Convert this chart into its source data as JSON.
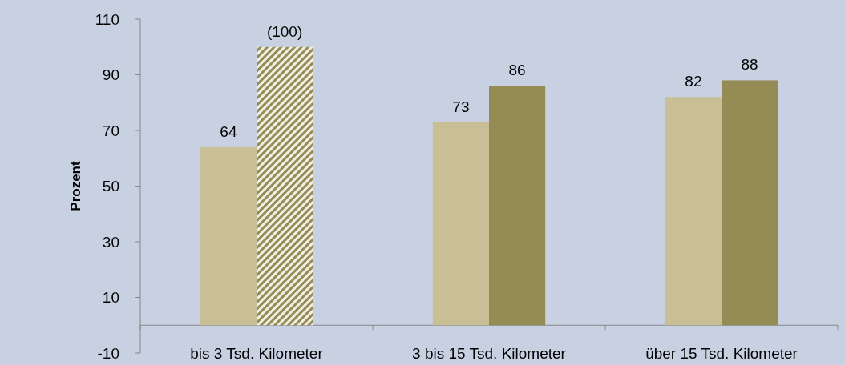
{
  "chart_data": {
    "type": "bar",
    "ylabel": "Prozent",
    "categories": [
      "bis 3 Tsd. Kilometer",
      "3 bis 15 Tsd. Kilometer",
      "über 15 Tsd. Kilometer"
    ],
    "series": [
      {
        "color": "#c8bf96",
        "values": [
          64,
          73,
          82
        ],
        "value_labels": [
          "64",
          "73",
          "82"
        ]
      },
      {
        "color": "#958b55",
        "colors": [
          "#f2efe4",
          "#958b55",
          "#958b55"
        ],
        "values": [
          100,
          86,
          88
        ],
        "value_labels": [
          "(100)",
          "86",
          "88"
        ]
      }
    ],
    "ylim": [
      -10,
      110
    ],
    "yticks": [
      -10,
      10,
      30,
      50,
      70,
      90,
      110
    ],
    "grid": false
  }
}
